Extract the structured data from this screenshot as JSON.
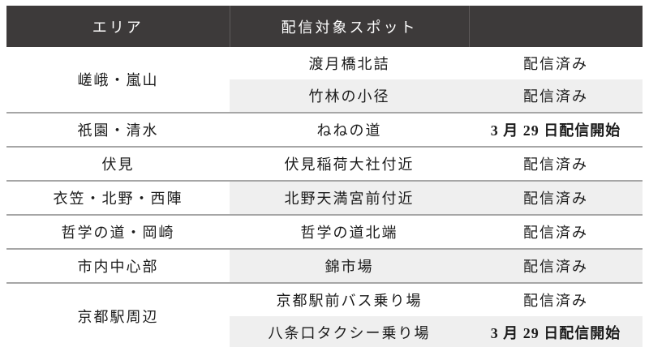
{
  "table": {
    "header": {
      "area": "エリア",
      "spot": "配信対象スポット",
      "status": ""
    },
    "groups": [
      {
        "area": "嵯峨・嵐山",
        "rows": [
          {
            "spot": "渡月橋北詰",
            "status": "配信済み"
          },
          {
            "spot": "竹林の小径",
            "status": "配信済み"
          }
        ]
      },
      {
        "area": "祇園・清水",
        "rows": [
          {
            "spot": "ねねの道",
            "status": "3 月 29 日配信開始"
          }
        ]
      },
      {
        "area": "伏見",
        "rows": [
          {
            "spot": "伏見稲荷大社付近",
            "status": "配信済み"
          }
        ]
      },
      {
        "area": "衣笠・北野・西陣",
        "rows": [
          {
            "spot": "北野天満宮前付近",
            "status": "配信済み"
          }
        ]
      },
      {
        "area": "哲学の道・岡崎",
        "rows": [
          {
            "spot": "哲学の道北端",
            "status": "配信済み"
          }
        ]
      },
      {
        "area": "市内中心部",
        "rows": [
          {
            "spot": "錦市場",
            "status": "配信済み"
          }
        ]
      },
      {
        "area": "京都駅周辺",
        "rows": [
          {
            "spot": "京都駅前バス乗り場",
            "status": "配信済み"
          },
          {
            "spot": "八条口タクシー乗り場",
            "status": "3 月 29 日配信開始"
          }
        ]
      }
    ],
    "colors": {
      "header_bg": "#3d3a3a",
      "header_text": "#ffffff",
      "stripe": "#efefef",
      "group_border": "#a6a6a6",
      "body_text": "#1b1b1b"
    }
  }
}
